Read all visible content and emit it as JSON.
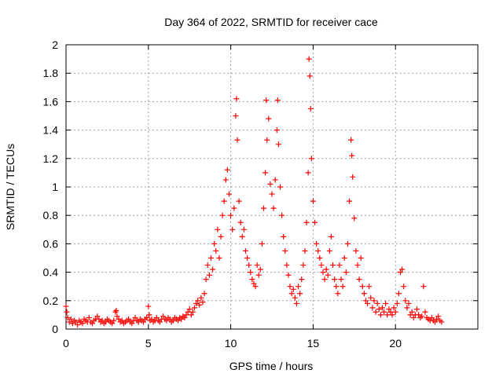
{
  "chart_data": {
    "type": "scatter",
    "title": "Day 364 of 2022, SRMTID for receiver cace",
    "xlabel": "GPS time / hours",
    "ylabel": "SRMTID / TECUs",
    "xlim": [
      0,
      25
    ],
    "ylim": [
      0,
      2
    ],
    "x_ticks": [
      0,
      5,
      10,
      15,
      20
    ],
    "x_tick_labels": [
      "0",
      "5",
      "10",
      "15",
      "20"
    ],
    "y_ticks": [
      0,
      0.2,
      0.4,
      0.6,
      0.8,
      1,
      1.2,
      1.4,
      1.6,
      1.8,
      2
    ],
    "y_tick_labels": [
      "0",
      "0.2",
      "0.4",
      "0.6",
      "0.8",
      "1",
      "1.2",
      "1.4",
      "1.6",
      "1.8",
      "2"
    ],
    "grid": true,
    "marker": "plus",
    "color": "#ff0000",
    "series": [
      {
        "name": "SRMTID",
        "points": [
          [
            0.0,
            0.16
          ],
          [
            0.05,
            0.12
          ],
          [
            0.1,
            0.08
          ],
          [
            0.2,
            0.05
          ],
          [
            0.3,
            0.07
          ],
          [
            0.4,
            0.04
          ],
          [
            0.5,
            0.06
          ],
          [
            0.6,
            0.05
          ],
          [
            0.7,
            0.03
          ],
          [
            0.8,
            0.06
          ],
          [
            0.9,
            0.05
          ],
          [
            1.0,
            0.04
          ],
          [
            1.1,
            0.07
          ],
          [
            1.2,
            0.06
          ],
          [
            1.3,
            0.05
          ],
          [
            1.4,
            0.08
          ],
          [
            1.5,
            0.05
          ],
          [
            1.6,
            0.04
          ],
          [
            1.7,
            0.06
          ],
          [
            1.8,
            0.07
          ],
          [
            1.9,
            0.09
          ],
          [
            2.0,
            0.07
          ],
          [
            2.1,
            0.05
          ],
          [
            2.2,
            0.06
          ],
          [
            2.3,
            0.04
          ],
          [
            2.4,
            0.05
          ],
          [
            2.5,
            0.07
          ],
          [
            2.6,
            0.06
          ],
          [
            2.7,
            0.05
          ],
          [
            2.8,
            0.04
          ],
          [
            2.9,
            0.06
          ],
          [
            3.0,
            0.12
          ],
          [
            3.05,
            0.13
          ],
          [
            3.1,
            0.09
          ],
          [
            3.2,
            0.07
          ],
          [
            3.3,
            0.05
          ],
          [
            3.4,
            0.06
          ],
          [
            3.5,
            0.04
          ],
          [
            3.6,
            0.05
          ],
          [
            3.7,
            0.06
          ],
          [
            3.8,
            0.07
          ],
          [
            3.9,
            0.05
          ],
          [
            4.0,
            0.04
          ],
          [
            4.1,
            0.06
          ],
          [
            4.2,
            0.08
          ],
          [
            4.3,
            0.06
          ],
          [
            4.4,
            0.05
          ],
          [
            4.5,
            0.07
          ],
          [
            4.6,
            0.06
          ],
          [
            4.7,
            0.05
          ],
          [
            4.8,
            0.07
          ],
          [
            4.9,
            0.08
          ],
          [
            5.0,
            0.16
          ],
          [
            5.05,
            0.1
          ],
          [
            5.1,
            0.06
          ],
          [
            5.2,
            0.07
          ],
          [
            5.3,
            0.05
          ],
          [
            5.4,
            0.06
          ],
          [
            5.5,
            0.08
          ],
          [
            5.6,
            0.06
          ],
          [
            5.7,
            0.05
          ],
          [
            5.8,
            0.07
          ],
          [
            5.9,
            0.09
          ],
          [
            6.0,
            0.07
          ],
          [
            6.1,
            0.06
          ],
          [
            6.2,
            0.08
          ],
          [
            6.3,
            0.07
          ],
          [
            6.4,
            0.05
          ],
          [
            6.5,
            0.06
          ],
          [
            6.6,
            0.08
          ],
          [
            6.7,
            0.07
          ],
          [
            6.8,
            0.06
          ],
          [
            6.9,
            0.08
          ],
          [
            7.0,
            0.07
          ],
          [
            7.1,
            0.09
          ],
          [
            7.2,
            0.08
          ],
          [
            7.3,
            0.1
          ],
          [
            7.4,
            0.12
          ],
          [
            7.5,
            0.14
          ],
          [
            7.6,
            0.1
          ],
          [
            7.7,
            0.12
          ],
          [
            7.8,
            0.15
          ],
          [
            7.9,
            0.18
          ],
          [
            8.0,
            0.2
          ],
          [
            8.1,
            0.17
          ],
          [
            8.2,
            0.22
          ],
          [
            8.3,
            0.19
          ],
          [
            8.4,
            0.25
          ],
          [
            8.5,
            0.35
          ],
          [
            8.6,
            0.45
          ],
          [
            8.7,
            0.38
          ],
          [
            8.8,
            0.5
          ],
          [
            8.9,
            0.42
          ],
          [
            9.0,
            0.6
          ],
          [
            9.1,
            0.55
          ],
          [
            9.2,
            0.7
          ],
          [
            9.3,
            0.5
          ],
          [
            9.4,
            0.65
          ],
          [
            9.5,
            0.8
          ],
          [
            9.6,
            0.9
          ],
          [
            9.7,
            1.05
          ],
          [
            9.8,
            1.12
          ],
          [
            9.9,
            0.95
          ],
          [
            10.0,
            0.8
          ],
          [
            10.1,
            0.7
          ],
          [
            10.2,
            0.85
          ],
          [
            10.3,
            1.5
          ],
          [
            10.35,
            1.62
          ],
          [
            10.4,
            1.33
          ],
          [
            10.5,
            0.9
          ],
          [
            10.6,
            0.75
          ],
          [
            10.7,
            0.65
          ],
          [
            10.8,
            0.7
          ],
          [
            10.9,
            0.55
          ],
          [
            11.0,
            0.5
          ],
          [
            11.1,
            0.45
          ],
          [
            11.2,
            0.4
          ],
          [
            11.3,
            0.35
          ],
          [
            11.4,
            0.32
          ],
          [
            11.5,
            0.3
          ],
          [
            11.6,
            0.45
          ],
          [
            11.7,
            0.38
          ],
          [
            11.8,
            0.42
          ],
          [
            11.9,
            0.6
          ],
          [
            12.0,
            0.85
          ],
          [
            12.1,
            1.1
          ],
          [
            12.15,
            1.61
          ],
          [
            12.2,
            1.33
          ],
          [
            12.3,
            1.48
          ],
          [
            12.4,
            1.02
          ],
          [
            12.5,
            0.95
          ],
          [
            12.6,
            0.85
          ],
          [
            12.7,
            1.05
          ],
          [
            12.8,
            1.4
          ],
          [
            12.85,
            1.61
          ],
          [
            12.9,
            1.3
          ],
          [
            13.0,
            1.0
          ],
          [
            13.1,
            0.8
          ],
          [
            13.2,
            0.65
          ],
          [
            13.3,
            0.55
          ],
          [
            13.4,
            0.45
          ],
          [
            13.5,
            0.38
          ],
          [
            13.6,
            0.3
          ],
          [
            13.7,
            0.25
          ],
          [
            13.8,
            0.28
          ],
          [
            13.9,
            0.22
          ],
          [
            14.0,
            0.18
          ],
          [
            14.1,
            0.3
          ],
          [
            14.2,
            0.25
          ],
          [
            14.3,
            0.35
          ],
          [
            14.4,
            0.45
          ],
          [
            14.5,
            0.55
          ],
          [
            14.6,
            0.75
          ],
          [
            14.7,
            1.1
          ],
          [
            14.75,
            1.9
          ],
          [
            14.8,
            1.78
          ],
          [
            14.85,
            1.55
          ],
          [
            14.9,
            1.2
          ],
          [
            15.0,
            0.9
          ],
          [
            15.1,
            0.75
          ],
          [
            15.2,
            0.6
          ],
          [
            15.3,
            0.55
          ],
          [
            15.4,
            0.5
          ],
          [
            15.5,
            0.45
          ],
          [
            15.6,
            0.4
          ],
          [
            15.7,
            0.35
          ],
          [
            15.8,
            0.42
          ],
          [
            15.9,
            0.38
          ],
          [
            16.0,
            0.55
          ],
          [
            16.1,
            0.65
          ],
          [
            16.2,
            0.45
          ],
          [
            16.3,
            0.35
          ],
          [
            16.4,
            0.3
          ],
          [
            16.5,
            0.25
          ],
          [
            16.6,
            0.45
          ],
          [
            16.7,
            0.35
          ],
          [
            16.8,
            0.3
          ],
          [
            16.9,
            0.5
          ],
          [
            17.0,
            0.4
          ],
          [
            17.1,
            0.6
          ],
          [
            17.2,
            0.9
          ],
          [
            17.3,
            1.33
          ],
          [
            17.35,
            1.22
          ],
          [
            17.4,
            1.07
          ],
          [
            17.5,
            0.78
          ],
          [
            17.6,
            0.55
          ],
          [
            17.7,
            0.45
          ],
          [
            17.8,
            0.35
          ],
          [
            17.9,
            0.5
          ],
          [
            18.0,
            0.3
          ],
          [
            18.1,
            0.25
          ],
          [
            18.2,
            0.2
          ],
          [
            18.3,
            0.18
          ],
          [
            18.4,
            0.3
          ],
          [
            18.5,
            0.22
          ],
          [
            18.6,
            0.15
          ],
          [
            18.7,
            0.2
          ],
          [
            18.8,
            0.12
          ],
          [
            18.9,
            0.18
          ],
          [
            19.0,
            0.14
          ],
          [
            19.1,
            0.1
          ],
          [
            19.2,
            0.15
          ],
          [
            19.3,
            0.12
          ],
          [
            19.4,
            0.18
          ],
          [
            19.5,
            0.1
          ],
          [
            19.6,
            0.14
          ],
          [
            19.7,
            0.12
          ],
          [
            19.8,
            0.1
          ],
          [
            19.9,
            0.15
          ],
          [
            20.0,
            0.12
          ],
          [
            20.1,
            0.18
          ],
          [
            20.2,
            0.25
          ],
          [
            20.3,
            0.4
          ],
          [
            20.4,
            0.42
          ],
          [
            20.5,
            0.3
          ],
          [
            20.6,
            0.2
          ],
          [
            20.7,
            0.15
          ],
          [
            20.8,
            0.18
          ],
          [
            20.9,
            0.1
          ],
          [
            21.0,
            0.12
          ],
          [
            21.1,
            0.08
          ],
          [
            21.2,
            0.1
          ],
          [
            21.3,
            0.14
          ],
          [
            21.4,
            0.1
          ],
          [
            21.5,
            0.08
          ],
          [
            21.6,
            0.09
          ],
          [
            21.7,
            0.3
          ],
          [
            21.8,
            0.12
          ],
          [
            21.9,
            0.08
          ],
          [
            22.0,
            0.07
          ],
          [
            22.1,
            0.06
          ],
          [
            22.2,
            0.08
          ],
          [
            22.3,
            0.06
          ],
          [
            22.4,
            0.05
          ],
          [
            22.5,
            0.07
          ],
          [
            22.6,
            0.09
          ],
          [
            22.7,
            0.06
          ],
          [
            22.8,
            0.05
          ]
        ]
      }
    ]
  }
}
